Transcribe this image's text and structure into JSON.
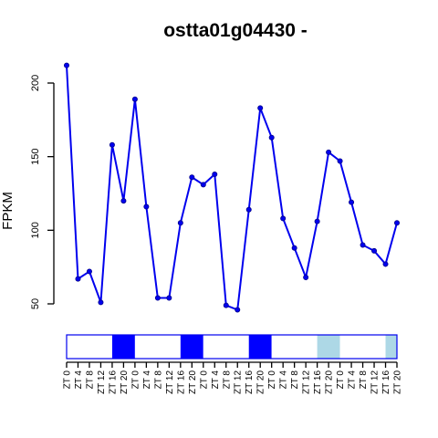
{
  "chart_data": {
    "type": "line",
    "title": "ostta01g04430 -",
    "xlabel": "",
    "ylabel": "FPKM",
    "yticks": [
      50,
      100,
      150,
      200
    ],
    "ylim": [
      45,
      212
    ],
    "grid": false,
    "line_color": "#0000ee",
    "x": [
      "ZT 0",
      "ZT 4",
      "ZT 8",
      "ZT 12",
      "ZT 16",
      "ZT 20",
      "ZT 0",
      "ZT 4",
      "ZT 8",
      "ZT 12",
      "ZT 16",
      "ZT 20",
      "ZT 0",
      "ZT 4",
      "ZT 8",
      "ZT 12",
      "ZT 16",
      "ZT 20",
      "ZT 0",
      "ZT 4",
      "ZT 8",
      "ZT 12",
      "ZT 16",
      "ZT 20",
      "ZT 0",
      "ZT 4",
      "ZT 8",
      "ZT 12",
      "ZT 16",
      "ZT 20"
    ],
    "series": [
      {
        "values": [
          212,
          67,
          72,
          51,
          158,
          120,
          189,
          116,
          54,
          54,
          105,
          136,
          131,
          138,
          49,
          46,
          114,
          183,
          163,
          108,
          88,
          68,
          106,
          153,
          147,
          119,
          90,
          86,
          77,
          105
        ]
      }
    ],
    "light_bar": [
      {
        "from": 0,
        "to": 4,
        "color": "#ffffff"
      },
      {
        "from": 4,
        "to": 6,
        "color": "#0000ff"
      },
      {
        "from": 6,
        "to": 10,
        "color": "#ffffff"
      },
      {
        "from": 10,
        "to": 12,
        "color": "#0000ff"
      },
      {
        "from": 12,
        "to": 16,
        "color": "#ffffff"
      },
      {
        "from": 16,
        "to": 18,
        "color": "#0000ff"
      },
      {
        "from": 18,
        "to": 22,
        "color": "#ffffff"
      },
      {
        "from": 22,
        "to": 24,
        "color": "#add8e6"
      },
      {
        "from": 24,
        "to": 28,
        "color": "#ffffff"
      },
      {
        "from": 28,
        "to": 29,
        "color": "#add8e6"
      }
    ]
  }
}
